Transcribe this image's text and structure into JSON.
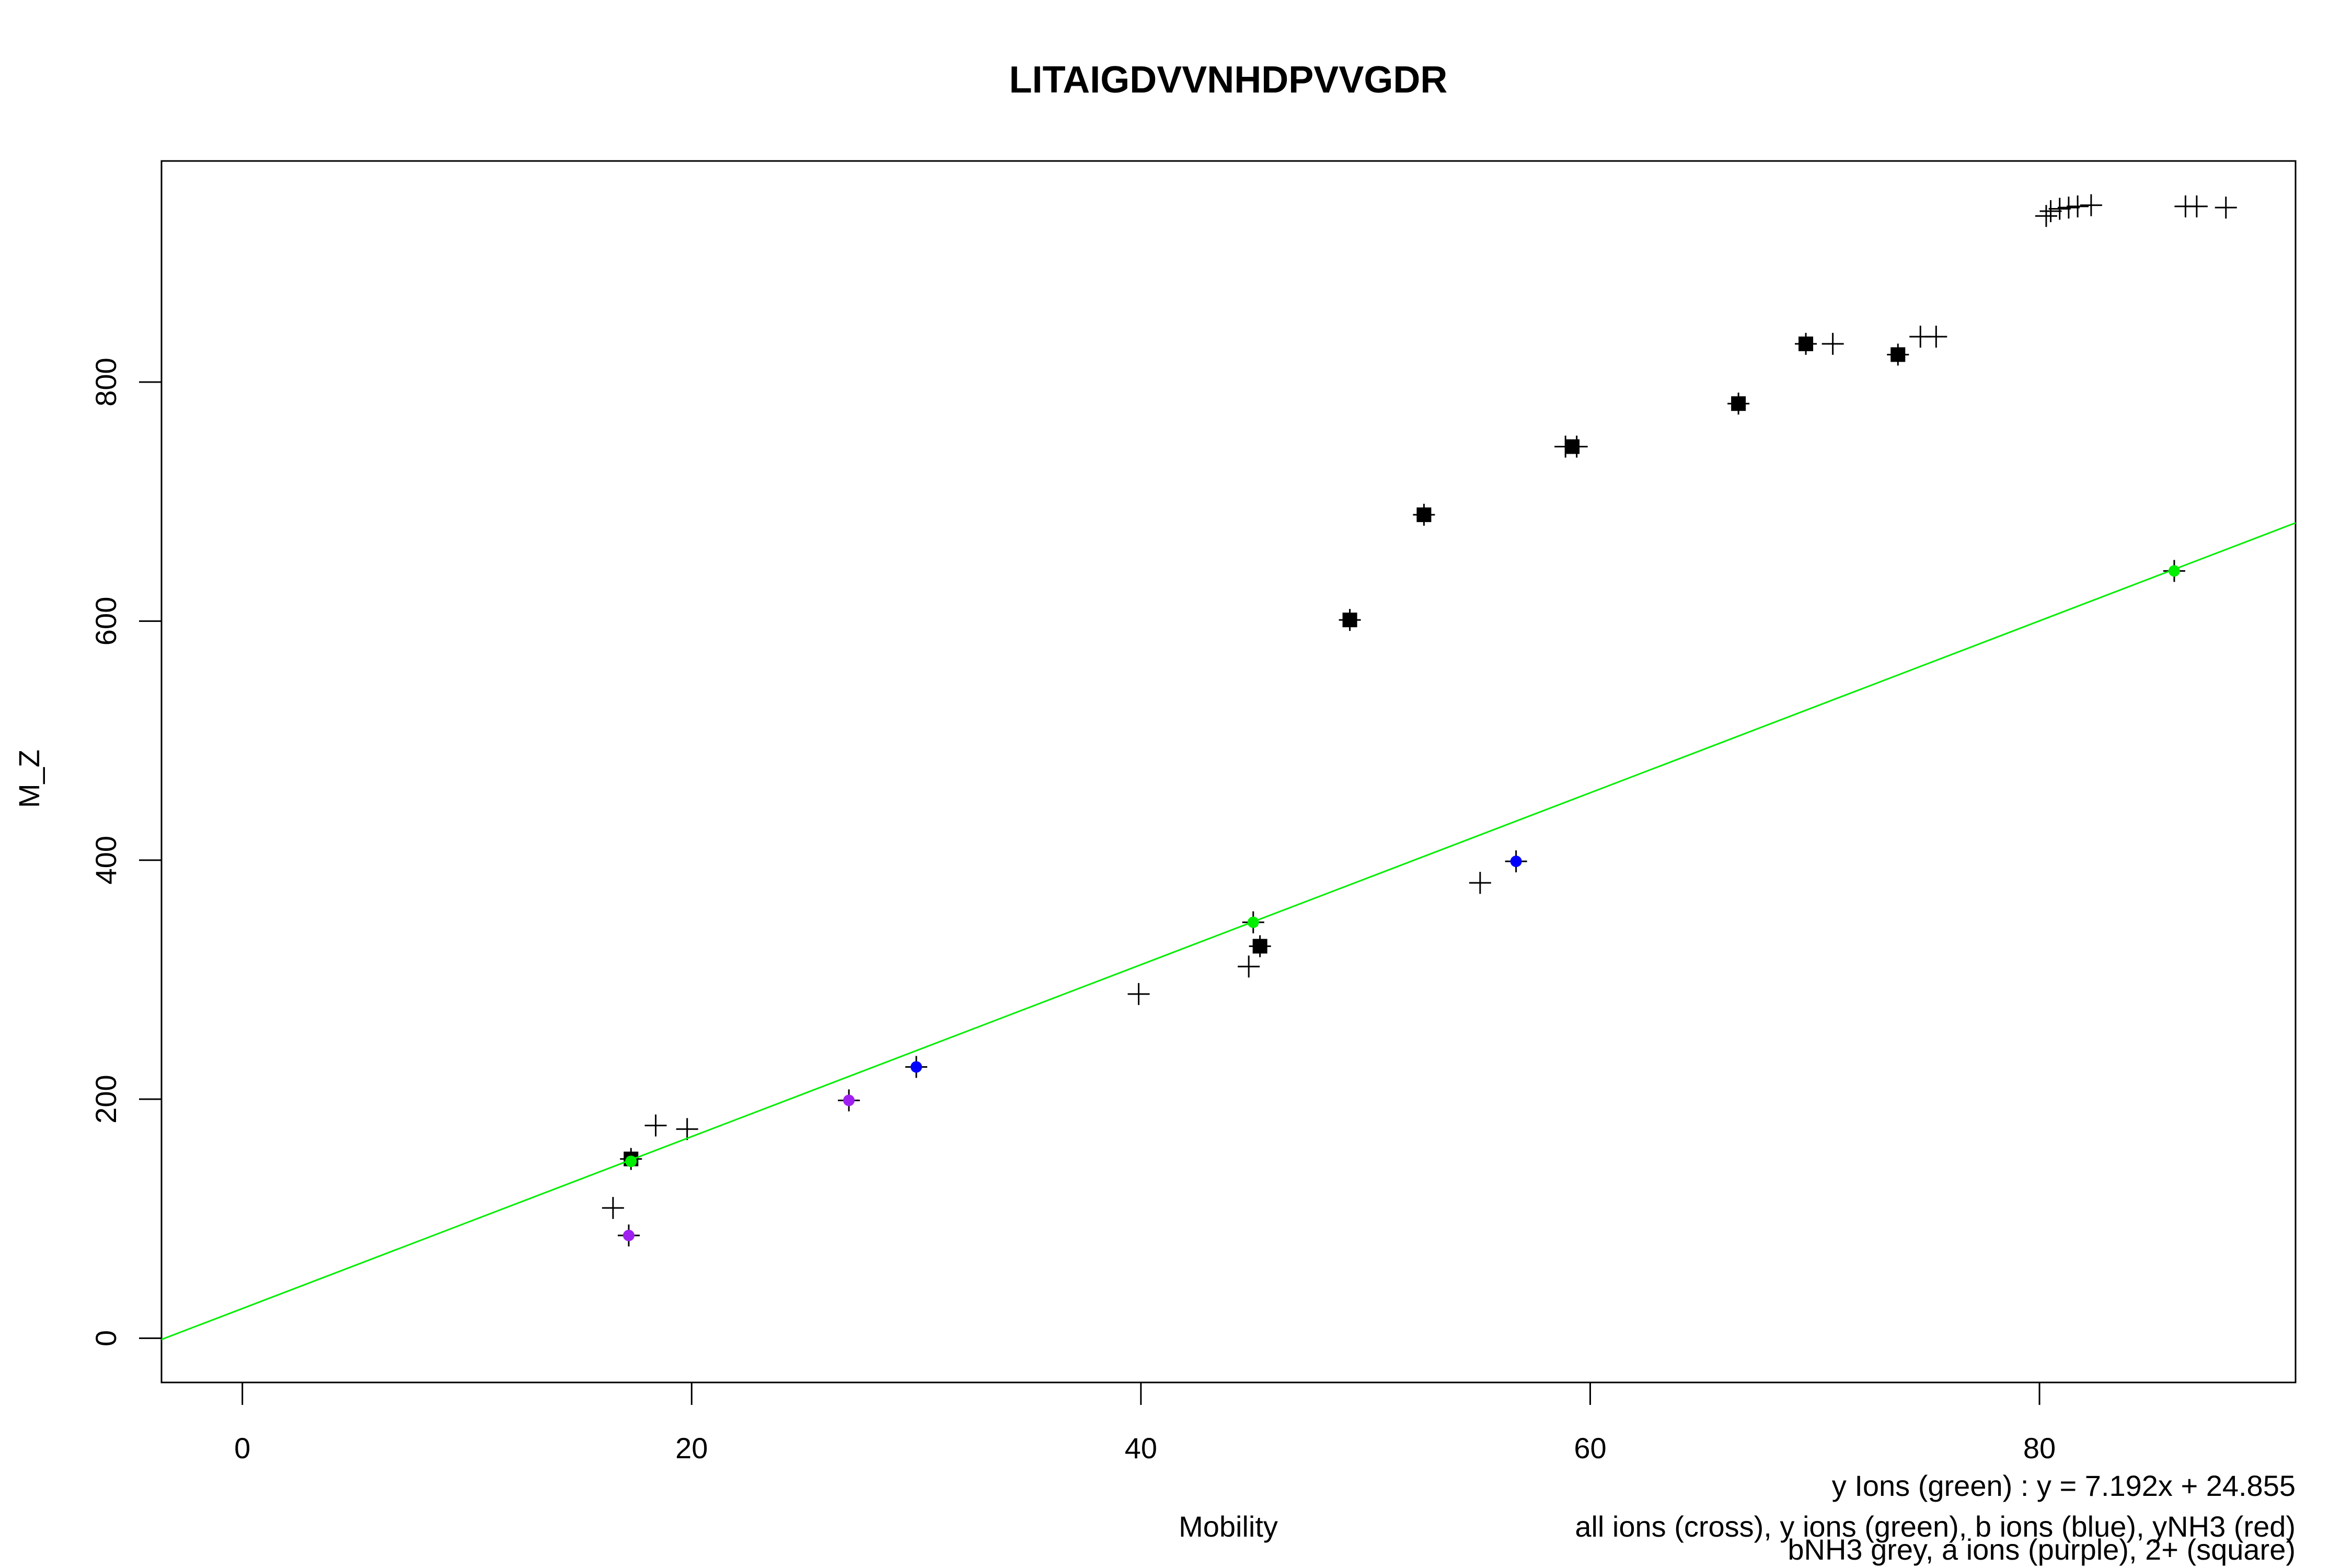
{
  "chart_data": {
    "type": "scatter",
    "title": "LITAIGDVVNHDPVVGDR",
    "xlabel": "Mobility",
    "ylabel": "M_Z",
    "xlim": [
      -3.6,
      91.4
    ],
    "ylim": [
      -37,
      985
    ],
    "xticks": [
      0,
      20,
      40,
      60,
      80
    ],
    "yticks": [
      0,
      200,
      400,
      600,
      800
    ],
    "grid": false,
    "legend_notes": [
      "y Ions (green) : y = 7.192x + 24.855",
      "all ions (cross), y ions (green), b ions (blue), yNH3 (red)",
      "bNH3 grey, a ions (purple), 2+ (square)"
    ],
    "fit_line": {
      "label": "y Ions (green)",
      "slope": 7.192,
      "intercept": 24.855,
      "color": "#00ee00"
    },
    "series": [
      {
        "name": "all ions (cross)",
        "marker": "cross",
        "color": "#000000",
        "points": [
          [
            16.5,
            109
          ],
          [
            17.2,
            86
          ],
          [
            17.3,
            150
          ],
          [
            18.4,
            178
          ],
          [
            19.8,
            175
          ],
          [
            27.0,
            199
          ],
          [
            30.0,
            227
          ],
          [
            39.9,
            288
          ],
          [
            44.8,
            311
          ],
          [
            45.0,
            348
          ],
          [
            45.3,
            328
          ],
          [
            49.3,
            601
          ],
          [
            52.6,
            689
          ],
          [
            55.1,
            381
          ],
          [
            56.7,
            399
          ],
          [
            58.9,
            746
          ],
          [
            59.4,
            746
          ],
          [
            66.6,
            782
          ],
          [
            69.6,
            832
          ],
          [
            70.8,
            832
          ],
          [
            73.7,
            823
          ],
          [
            74.7,
            838
          ],
          [
            75.4,
            838
          ],
          [
            80.3,
            939
          ],
          [
            80.5,
            943
          ],
          [
            80.9,
            945
          ],
          [
            81.3,
            946
          ],
          [
            81.7,
            947
          ],
          [
            82.3,
            948
          ],
          [
            86.0,
            642
          ],
          [
            86.5,
            947
          ],
          [
            87.0,
            947
          ],
          [
            88.3,
            946
          ]
        ]
      },
      {
        "name": "y ions (green)",
        "marker": "dot",
        "color": "#00ee00",
        "points": [
          [
            17.3,
            148
          ],
          [
            45.0,
            348
          ],
          [
            86.0,
            642
          ]
        ]
      },
      {
        "name": "b ions (blue)",
        "marker": "dot",
        "color": "#0000ff",
        "points": [
          [
            30.0,
            227
          ],
          [
            56.7,
            399
          ]
        ]
      },
      {
        "name": "a ions (purple)",
        "marker": "dot",
        "color": "#a020f0",
        "points": [
          [
            17.2,
            86
          ],
          [
            27.0,
            199
          ]
        ]
      },
      {
        "name": "2+ (square)",
        "marker": "square",
        "color": "#000000",
        "points": [
          [
            17.3,
            150
          ],
          [
            45.3,
            328
          ],
          [
            49.3,
            601
          ],
          [
            52.6,
            689
          ],
          [
            59.2,
            746
          ],
          [
            66.6,
            782
          ],
          [
            69.6,
            832
          ],
          [
            73.7,
            823
          ]
        ]
      }
    ]
  }
}
